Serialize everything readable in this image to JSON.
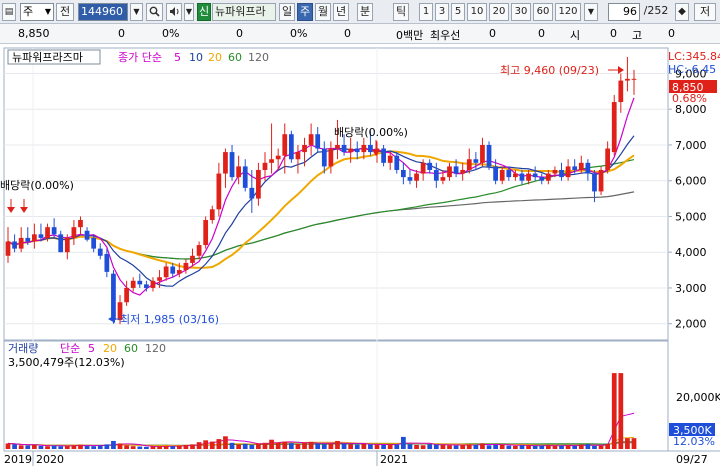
{
  "toolbar": {
    "market_select": "주",
    "prev_label": "전",
    "code_value": "144960",
    "signal_badge": "신",
    "stock_name": "뉴파워프라",
    "periods": [
      "일",
      "주",
      "월",
      "년",
      "분",
      "틱"
    ],
    "selected_period": "주",
    "intervals": [
      "1",
      "3",
      "5",
      "10",
      "20",
      "30",
      "60",
      "120"
    ],
    "count_value": "96",
    "count_total": "/252",
    "save_label": "저"
  },
  "info_row": {
    "price": "8,850",
    "change": "0",
    "change_pct": "0%",
    "volume": "0",
    "volume_pct": "0%",
    "amount": "0",
    "amount_unit": "0백만",
    "priority_label": "최우선",
    "bid": "0",
    "bid2": "0",
    "o_label": "시",
    "o_value": "0",
    "h_label": "고",
    "h_value": "0"
  },
  "price_panel": {
    "title": "뉴파워프라즈마",
    "ma_label": "종가 단순",
    "ma_periods": [
      "5",
      "10",
      "20",
      "60",
      "120"
    ],
    "lc_label": "LC:345.84",
    "hc_label": "HC:-6.45",
    "current_price": "8,850",
    "current_pct": "0.68%",
    "high_note": "최고 9,460 (09/23)",
    "low_note": "최저 1,985 (03/16)",
    "dividend_note": "배당락(0.00%)",
    "dividend_left_note": "배당락(0.00%)",
    "y_ticks": [
      "9,000",
      "8,000",
      "7,000",
      "6,000",
      "5,000",
      "4,000",
      "3,000",
      "2,000"
    ]
  },
  "volume_panel": {
    "title": "거래량",
    "ma_label": "단순",
    "ma_periods": [
      "5",
      "20",
      "60",
      "120"
    ],
    "current_volume": "3,500,479주(12.03%)",
    "y_tick": "20,000K",
    "current_badge": "3,500K",
    "current_pct": "12.03%"
  },
  "x_axis": {
    "labels": [
      "2019",
      "2020",
      "2021"
    ],
    "last_date": "09/27"
  },
  "colors": {
    "up": "#e0211a",
    "down": "#1f4fd8",
    "ma5": "#cc00cc",
    "ma10": "#1f3fa0",
    "ma20": "#f0a800",
    "ma60": "#2a8c2a",
    "ma120": "#666666"
  },
  "chart_data": {
    "type": "candlestick",
    "title": "뉴파워프라즈마",
    "ylim": [
      1600,
      9600
    ],
    "candles": [
      {
        "o": 3900,
        "h": 4700,
        "l": 3700,
        "c": 4300
      },
      {
        "o": 4300,
        "h": 4500,
        "l": 4000,
        "c": 4100
      },
      {
        "o": 4100,
        "h": 4700,
        "l": 4000,
        "c": 4400
      },
      {
        "o": 4400,
        "h": 4700,
        "l": 4200,
        "c": 4300
      },
      {
        "o": 4300,
        "h": 4800,
        "l": 4100,
        "c": 4500
      },
      {
        "o": 4500,
        "h": 4800,
        "l": 4300,
        "c": 4400
      },
      {
        "o": 4400,
        "h": 4800,
        "l": 4300,
        "c": 4700
      },
      {
        "o": 4700,
        "h": 4950,
        "l": 4400,
        "c": 4500
      },
      {
        "o": 4500,
        "h": 4600,
        "l": 4000,
        "c": 4000
      },
      {
        "o": 4000,
        "h": 4500,
        "l": 3800,
        "c": 4400
      },
      {
        "o": 4400,
        "h": 4900,
        "l": 4200,
        "c": 4700
      },
      {
        "o": 4700,
        "h": 5000,
        "l": 4500,
        "c": 4900
      },
      {
        "o": 4600,
        "h": 4700,
        "l": 4300,
        "c": 4350
      },
      {
        "o": 4400,
        "h": 4500,
        "l": 4000,
        "c": 4100
      },
      {
        "o": 4100,
        "h": 4250,
        "l": 3800,
        "c": 3900
      },
      {
        "o": 3950,
        "h": 4100,
        "l": 3300,
        "c": 3450
      },
      {
        "o": 3400,
        "h": 3500,
        "l": 2000,
        "c": 2100
      },
      {
        "o": 2100,
        "h": 2800,
        "l": 1985,
        "c": 2600
      },
      {
        "o": 2600,
        "h": 3200,
        "l": 2500,
        "c": 3000
      },
      {
        "o": 3000,
        "h": 3300,
        "l": 2900,
        "c": 3200
      },
      {
        "o": 3200,
        "h": 3400,
        "l": 3000,
        "c": 3100
      },
      {
        "o": 3100,
        "h": 3200,
        "l": 2900,
        "c": 3000
      },
      {
        "o": 3000,
        "h": 3300,
        "l": 2900,
        "c": 3200
      },
      {
        "o": 3200,
        "h": 3500,
        "l": 3000,
        "c": 3300
      },
      {
        "o": 3300,
        "h": 3700,
        "l": 3200,
        "c": 3600
      },
      {
        "o": 3600,
        "h": 3700,
        "l": 3300,
        "c": 3400
      },
      {
        "o": 3400,
        "h": 3700,
        "l": 3300,
        "c": 3500
      },
      {
        "o": 3500,
        "h": 3800,
        "l": 3400,
        "c": 3700
      },
      {
        "o": 3700,
        "h": 4100,
        "l": 3600,
        "c": 3900
      },
      {
        "o": 3900,
        "h": 4300,
        "l": 3800,
        "c": 4200
      },
      {
        "o": 4200,
        "h": 5000,
        "l": 4100,
        "c": 4900
      },
      {
        "o": 4900,
        "h": 5300,
        "l": 4800,
        "c": 5200
      },
      {
        "o": 5200,
        "h": 6500,
        "l": 5000,
        "c": 6200
      },
      {
        "o": 6200,
        "h": 6900,
        "l": 5800,
        "c": 6800
      },
      {
        "o": 6800,
        "h": 7000,
        "l": 6000,
        "c": 6100
      },
      {
        "o": 6100,
        "h": 6700,
        "l": 5900,
        "c": 6400
      },
      {
        "o": 6400,
        "h": 6600,
        "l": 5700,
        "c": 5800
      },
      {
        "o": 5800,
        "h": 6300,
        "l": 5100,
        "c": 5500
      },
      {
        "o": 5500,
        "h": 6500,
        "l": 5300,
        "c": 6300
      },
      {
        "o": 6300,
        "h": 6800,
        "l": 6000,
        "c": 6500
      },
      {
        "o": 6500,
        "h": 7600,
        "l": 6200,
        "c": 6600
      },
      {
        "o": 6600,
        "h": 6900,
        "l": 6300,
        "c": 6700
      },
      {
        "o": 6700,
        "h": 7600,
        "l": 6200,
        "c": 7300
      },
      {
        "o": 7300,
        "h": 7400,
        "l": 6500,
        "c": 6600
      },
      {
        "o": 6600,
        "h": 7000,
        "l": 6200,
        "c": 6800
      },
      {
        "o": 6800,
        "h": 7200,
        "l": 6400,
        "c": 7000
      },
      {
        "o": 7000,
        "h": 7600,
        "l": 6700,
        "c": 7300
      },
      {
        "o": 7300,
        "h": 7500,
        "l": 6800,
        "c": 6900
      },
      {
        "o": 6900,
        "h": 7100,
        "l": 6200,
        "c": 6400
      },
      {
        "o": 6400,
        "h": 7100,
        "l": 6200,
        "c": 6900
      },
      {
        "o": 6900,
        "h": 7700,
        "l": 6600,
        "c": 7000
      },
      {
        "o": 7000,
        "h": 7300,
        "l": 6700,
        "c": 6800
      },
      {
        "o": 6800,
        "h": 7200,
        "l": 6500,
        "c": 6900
      },
      {
        "o": 6900,
        "h": 7100,
        "l": 6600,
        "c": 6800
      },
      {
        "o": 6800,
        "h": 7200,
        "l": 6600,
        "c": 7000
      },
      {
        "o": 7000,
        "h": 7400,
        "l": 6700,
        "c": 6800
      },
      {
        "o": 6800,
        "h": 7100,
        "l": 6500,
        "c": 6900
      },
      {
        "o": 6900,
        "h": 7000,
        "l": 6400,
        "c": 6500
      },
      {
        "o": 6500,
        "h": 6800,
        "l": 6300,
        "c": 6700
      },
      {
        "o": 6700,
        "h": 6800,
        "l": 6200,
        "c": 6300
      },
      {
        "o": 6300,
        "h": 6500,
        "l": 5900,
        "c": 6100
      },
      {
        "o": 6100,
        "h": 6300,
        "l": 5900,
        "c": 6000
      },
      {
        "o": 6000,
        "h": 6300,
        "l": 5800,
        "c": 6200
      },
      {
        "o": 6200,
        "h": 6600,
        "l": 6000,
        "c": 6500
      },
      {
        "o": 6500,
        "h": 6600,
        "l": 6200,
        "c": 6300
      },
      {
        "o": 6300,
        "h": 6500,
        "l": 5800,
        "c": 6000
      },
      {
        "o": 6000,
        "h": 6300,
        "l": 5900,
        "c": 6100
      },
      {
        "o": 6100,
        "h": 6500,
        "l": 6000,
        "c": 6400
      },
      {
        "o": 6400,
        "h": 6600,
        "l": 6100,
        "c": 6200
      },
      {
        "o": 6200,
        "h": 6500,
        "l": 6000,
        "c": 6300
      },
      {
        "o": 6300,
        "h": 6900,
        "l": 6200,
        "c": 6600
      },
      {
        "o": 6600,
        "h": 6800,
        "l": 6300,
        "c": 6500
      },
      {
        "o": 6500,
        "h": 7200,
        "l": 6400,
        "c": 7000
      },
      {
        "o": 7000,
        "h": 7100,
        "l": 6300,
        "c": 6400
      },
      {
        "o": 6400,
        "h": 6600,
        "l": 5900,
        "c": 6000
      },
      {
        "o": 6000,
        "h": 6400,
        "l": 5900,
        "c": 6300
      },
      {
        "o": 6300,
        "h": 6400,
        "l": 6000,
        "c": 6100
      },
      {
        "o": 6100,
        "h": 6300,
        "l": 6000,
        "c": 6200
      },
      {
        "o": 6200,
        "h": 6300,
        "l": 5900,
        "c": 6000
      },
      {
        "o": 6000,
        "h": 6300,
        "l": 5900,
        "c": 6200
      },
      {
        "o": 6200,
        "h": 6400,
        "l": 6000,
        "c": 6100
      },
      {
        "o": 6100,
        "h": 6200,
        "l": 5900,
        "c": 6000
      },
      {
        "o": 6000,
        "h": 6300,
        "l": 5900,
        "c": 6200
      },
      {
        "o": 6200,
        "h": 6400,
        "l": 6100,
        "c": 6300
      },
      {
        "o": 6300,
        "h": 6500,
        "l": 6000,
        "c": 6100
      },
      {
        "o": 6100,
        "h": 6600,
        "l": 6000,
        "c": 6400
      },
      {
        "o": 6400,
        "h": 6600,
        "l": 6200,
        "c": 6300
      },
      {
        "o": 6300,
        "h": 6700,
        "l": 6200,
        "c": 6500
      },
      {
        "o": 6500,
        "h": 6600,
        "l": 6000,
        "c": 6200
      },
      {
        "o": 6200,
        "h": 6300,
        "l": 5400,
        "c": 5700
      },
      {
        "o": 5700,
        "h": 6400,
        "l": 5600,
        "c": 6300
      },
      {
        "o": 6300,
        "h": 7100,
        "l": 6200,
        "c": 6900
      },
      {
        "o": 6800,
        "h": 8400,
        "l": 6700,
        "c": 8200
      },
      {
        "o": 8200,
        "h": 9000,
        "l": 7900,
        "c": 8800
      },
      {
        "o": 8800,
        "h": 9460,
        "l": 8500,
        "c": 8850
      },
      {
        "o": 8850,
        "h": 9100,
        "l": 8400,
        "c": 8850
      }
    ],
    "volumes": [
      1800,
      1500,
      1200,
      1100,
      1300,
      1000,
      900,
      1100,
      900,
      1000,
      1200,
      1400,
      1000,
      900,
      1100,
      1500,
      2600,
      1800,
      1200,
      900,
      800,
      700,
      800,
      900,
      1000,
      900,
      1100,
      1300,
      1500,
      2200,
      2800,
      2400,
      3200,
      4100,
      2000,
      1500,
      1700,
      1400,
      1800,
      2000,
      3000,
      2100,
      2400,
      1900,
      1600,
      2100,
      2300,
      1700,
      1500,
      1800,
      2600,
      1700,
      1500,
      1400,
      1600,
      1500,
      1400,
      1300,
      1500,
      1400,
      3900,
      1500,
      1300,
      1200,
      1500,
      1400,
      1300,
      1200,
      1100,
      1300,
      1500,
      1400,
      1800,
      1200,
      1300,
      1400,
      1100,
      1000,
      1200,
      1100,
      1000,
      1100,
      1200,
      1000,
      1100,
      1200,
      1000,
      1400,
      1500,
      1000,
      1100,
      1600,
      24500,
      24500,
      3500,
      3500
    ]
  }
}
